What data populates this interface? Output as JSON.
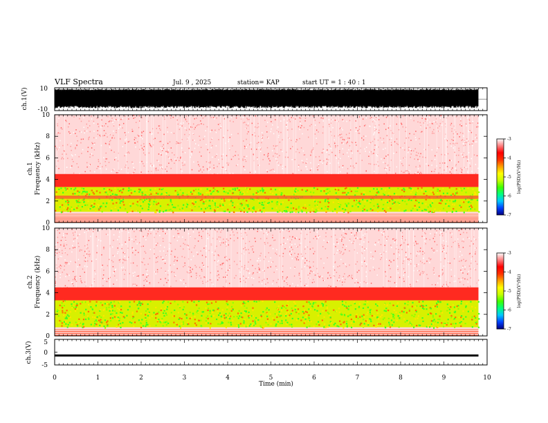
{
  "header": {
    "title": "VLF Spectra",
    "date": "Jul. 9 , 2025",
    "station": "station= KAP",
    "start": "start UT =  1 : 40 : 1"
  },
  "chart_data": [
    {
      "type": "line",
      "panel": "ch1-waveform",
      "ylabel": "ch.1(V)",
      "ylim": [
        -10,
        10
      ],
      "yticks": [
        "10",
        "-10"
      ],
      "xlim": [
        0,
        10
      ],
      "x_data_end": 9.8,
      "description_values": {
        "typical_min": -8,
        "typical_max": 9
      }
    },
    {
      "type": "heatmap",
      "panel": "ch1-spectrogram",
      "ylabel": "ch.1\nFrequency (kHz)",
      "ylabel_line1": "ch.1",
      "ylabel_line2": "Frequency (kHz)",
      "ylim": [
        0,
        10
      ],
      "yticks": [
        "0",
        "2",
        "4",
        "6",
        "8",
        "10"
      ],
      "xlim": [
        0,
        10
      ],
      "x_data_end": 9.8,
      "colorbar": {
        "label": "log(PSD)(V²/Hz)",
        "range": [
          -7,
          -3
        ],
        "ticks": [
          "-3",
          "-4",
          "-5",
          "-6",
          "-7"
        ],
        "colors": [
          "#000080",
          "#0040ff",
          "#00c8ff",
          "#00ff80",
          "#40ff00",
          "#c8ff00",
          "#ffff00",
          "#ffa000",
          "#ff3000",
          "#ff0000",
          "#ff8080",
          "#ffffff"
        ]
      },
      "bands": [
        {
          "from_khz": 0.0,
          "to_khz": 0.9,
          "level": "orange/red lines"
        },
        {
          "from_khz": 1.0,
          "to_khz": 2.2,
          "level": "yellow-green"
        },
        {
          "from_khz": 2.5,
          "to_khz": 3.4,
          "level": "yellow-green"
        },
        {
          "from_khz": 3.4,
          "to_khz": 4.5,
          "level": "red"
        },
        {
          "from_khz": 4.5,
          "to_khz": 10.0,
          "level": "light red / white"
        }
      ]
    },
    {
      "type": "heatmap",
      "panel": "ch2-spectrogram",
      "ylabel_line1": "ch.2",
      "ylabel_line2": "Frequency (kHz)",
      "ylim": [
        0,
        10
      ],
      "yticks": [
        "0",
        "2",
        "4",
        "6",
        "8",
        "10"
      ],
      "xlim": [
        0,
        10
      ],
      "x_data_end": 9.8,
      "colorbar": {
        "label": "log(PSD)(V²/Hz)",
        "range": [
          -7,
          -3
        ],
        "ticks": [
          "-3",
          "-4",
          "-5",
          "-6",
          "-7"
        ]
      },
      "bands": [
        {
          "from_khz": 0.0,
          "to_khz": 0.8,
          "level": "orange/red lines"
        },
        {
          "from_khz": 0.8,
          "to_khz": 3.3,
          "level": "green-yellow"
        },
        {
          "from_khz": 3.3,
          "to_khz": 4.5,
          "level": "red"
        },
        {
          "from_khz": 4.5,
          "to_khz": 10.0,
          "level": "light red / white"
        }
      ]
    },
    {
      "type": "line",
      "panel": "ch3-waveform",
      "ylabel": "ch.3(V)",
      "ylim": [
        -5,
        5
      ],
      "yticks": [
        "5",
        "0",
        "-5"
      ],
      "xlim": [
        0,
        10
      ],
      "x_data_end": 9.8,
      "xlabel": "Time (min)",
      "xticks": [
        "0",
        "1",
        "2",
        "3",
        "4",
        "5",
        "6",
        "7",
        "8",
        "9",
        "10"
      ],
      "band_center": -1.3,
      "band_halfwidth": 0.4
    }
  ]
}
